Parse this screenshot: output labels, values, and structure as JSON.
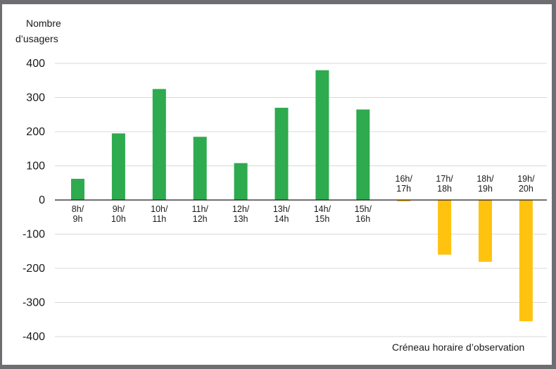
{
  "chart_data": {
    "type": "bar",
    "ylabel": [
      "Nombre",
      "d’usagers"
    ],
    "xlabel": "Créneau horaire d’observation",
    "ylim": [
      -400,
      400
    ],
    "yticks": [
      "400",
      "300",
      "200",
      "100",
      "0",
      "-100",
      "-200",
      "-300",
      "-400"
    ],
    "grid": true,
    "categories": [
      [
        "8h/",
        "9h"
      ],
      [
        "9h/",
        "10h"
      ],
      [
        "10h/",
        "11h"
      ],
      [
        "11h/",
        "12h"
      ],
      [
        "12h/",
        "13h"
      ],
      [
        "13h/",
        "14h"
      ],
      [
        "14h/",
        "15h"
      ],
      [
        "15h/",
        "16h"
      ],
      [
        "16h/",
        "17h"
      ],
      [
        "17h/",
        "18h"
      ],
      [
        "18h/",
        "19h"
      ],
      [
        "19h/",
        "20h"
      ]
    ],
    "values": [
      62,
      195,
      325,
      185,
      108,
      270,
      380,
      265,
      -4,
      -160,
      -181,
      -355
    ],
    "colors": {
      "positive": "#2eaa4f",
      "negative": "#ffc20e",
      "grid": "#d9d9d9",
      "axis": "#1a1a1a",
      "frame": "#6d6e71"
    }
  }
}
